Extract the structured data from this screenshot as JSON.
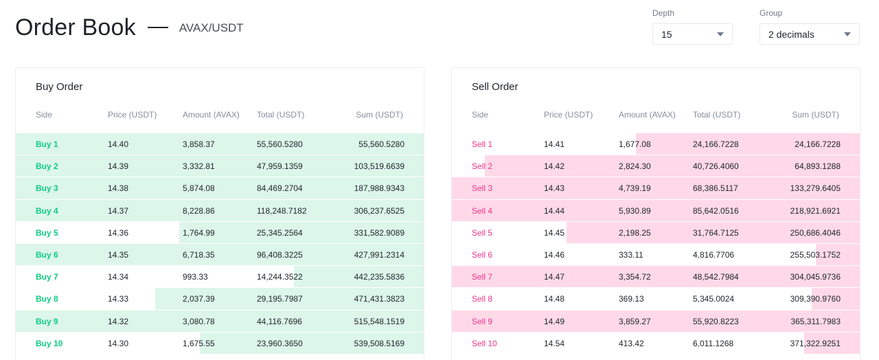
{
  "header": {
    "title": "Order Book",
    "pair": "AVAX/USDT"
  },
  "controls": {
    "depth": {
      "label": "Depth",
      "value": "15"
    },
    "group": {
      "label": "Group",
      "value": "2 decimals"
    }
  },
  "columns": {
    "buy": {
      "side": "Side",
      "price": "Price (USDT)",
      "amount": "Amount (AVAX)",
      "total": "Total (USDT)",
      "sum": "Sum (USDT)"
    },
    "sell": {
      "side": "Side",
      "price": "Price (USDT)",
      "amount": "Amount (AVAX)",
      "total": "Total (USDT)",
      "sum": "Sum (USDT)"
    }
  },
  "buy": {
    "title": "Buy Order",
    "rows": [
      {
        "side": "Buy 1",
        "price": "14.40",
        "amount": "3,858.37",
        "total": "55,560.5280",
        "sum": "55,560.5280",
        "depth": 1.0
      },
      {
        "side": "Buy 2",
        "price": "14.39",
        "amount": "3,332.81",
        "total": "47,959.1359",
        "sum": "103,519.6639",
        "depth": 1.0
      },
      {
        "side": "Buy 3",
        "price": "14.38",
        "amount": "5,874.08",
        "total": "84,469.2704",
        "sum": "187,988.9343",
        "depth": 1.0
      },
      {
        "side": "Buy 4",
        "price": "14.37",
        "amount": "8,228.86",
        "total": "118,248.7182",
        "sum": "306,237.6525",
        "depth": 1.0
      },
      {
        "side": "Buy 5",
        "price": "14.36",
        "amount": "1,764.99",
        "total": "25,345.2564",
        "sum": "331,582.9089",
        "depth": 0.6
      },
      {
        "side": "Buy 6",
        "price": "14.35",
        "amount": "6,718.35",
        "total": "96,408.3225",
        "sum": "427,991.2314",
        "depth": 1.0
      },
      {
        "side": "Buy 7",
        "price": "14.34",
        "amount": "993.33",
        "total": "14,244.3522",
        "sum": "442,235.5836",
        "depth": 0.32
      },
      {
        "side": "Buy 8",
        "price": "14.33",
        "amount": "2,037.39",
        "total": "29,195.7987",
        "sum": "471,431.3823",
        "depth": 0.66
      },
      {
        "side": "Buy 9",
        "price": "14.32",
        "amount": "3,080.78",
        "total": "44,116.7696",
        "sum": "515,548.1519",
        "depth": 1.0
      },
      {
        "side": "Buy 10",
        "price": "14.30",
        "amount": "1,675.55",
        "total": "23,960.3650",
        "sum": "539,508.5169",
        "depth": 0.55
      }
    ]
  },
  "sell": {
    "title": "Sell Order",
    "rows": [
      {
        "side": "Sell 1",
        "price": "14.41",
        "amount": "1,677.08",
        "total": "24,166.7228",
        "sum": "24,166.7228",
        "depth": 0.55
      },
      {
        "side": "Sell 2",
        "price": "14.42",
        "amount": "2,824.30",
        "total": "40,726.4060",
        "sum": "64,893.1288",
        "depth": 0.92
      },
      {
        "side": "Sell 3",
        "price": "14.43",
        "amount": "4,739.19",
        "total": "68,386.5117",
        "sum": "133,279.6405",
        "depth": 1.0
      },
      {
        "side": "Sell 4",
        "price": "14.44",
        "amount": "5,930.89",
        "total": "85,642.0516",
        "sum": "218,921.6921",
        "depth": 1.0
      },
      {
        "side": "Sell 5",
        "price": "14.45",
        "amount": "2,198.25",
        "total": "31,764.7125",
        "sum": "250,686.4046",
        "depth": 0.72
      },
      {
        "side": "Sell 6",
        "price": "14.46",
        "amount": "333.11",
        "total": "4,816.7706",
        "sum": "255,503.1752",
        "depth": 0.11
      },
      {
        "side": "Sell 7",
        "price": "14.47",
        "amount": "3,354.72",
        "total": "48,542.7984",
        "sum": "304,045.9736",
        "depth": 1.0
      },
      {
        "side": "Sell 8",
        "price": "14.48",
        "amount": "369.13",
        "total": "5,345.0024",
        "sum": "309,390.9760",
        "depth": 0.12
      },
      {
        "side": "Sell 9",
        "price": "14.49",
        "amount": "3,859.27",
        "total": "55,920.8223",
        "sum": "365,311.7983",
        "depth": 1.0
      },
      {
        "side": "Sell 10",
        "price": "14.54",
        "amount": "413.42",
        "total": "6,011.1268",
        "sum": "371,322.9251",
        "depth": 0.14
      }
    ]
  },
  "colors": {
    "buy_text": "#0ecb81",
    "buy_depth": "#dcf6ea",
    "sell_text": "#f0338a",
    "sell_depth": "#ffd9e8"
  }
}
